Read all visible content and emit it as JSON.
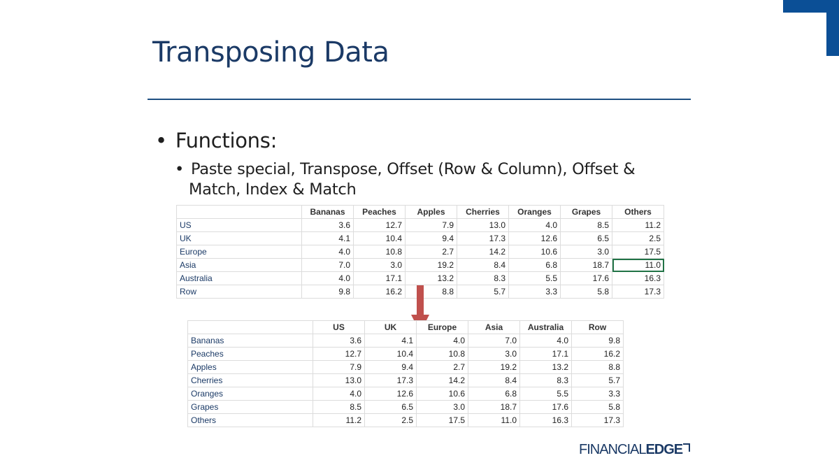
{
  "slide": {
    "title": "Transposing Data",
    "bullet1": "Functions:",
    "bullet2_line1": "Paste special, Transpose, Offset (Row & Column), Offset &",
    "bullet2_line2": "Match, Index & Match",
    "bullet_glyph": "•"
  },
  "colors": {
    "accent": "#1e4f82",
    "corner": "#0b4f96",
    "arrow": "#c0504d",
    "title": "#1b3a66"
  },
  "table1": {
    "headers": [
      "",
      "Bananas",
      "Peaches",
      "Apples",
      "Cherries",
      "Oranges",
      "Grapes",
      "Others"
    ],
    "rows": [
      [
        "US",
        "3.6",
        "12.7",
        "7.9",
        "13.0",
        "4.0",
        "8.5",
        "11.2"
      ],
      [
        "UK",
        "4.1",
        "10.4",
        "9.4",
        "17.3",
        "12.6",
        "6.5",
        "2.5"
      ],
      [
        "Europe",
        "4.0",
        "10.8",
        "2.7",
        "14.2",
        "10.6",
        "3.0",
        "17.5"
      ],
      [
        "Asia",
        "7.0",
        "3.0",
        "19.2",
        "8.4",
        "6.8",
        "18.7",
        "11.0"
      ],
      [
        "Australia",
        "4.0",
        "17.1",
        "13.2",
        "8.3",
        "5.5",
        "17.6",
        "16.3"
      ],
      [
        "Row",
        "9.8",
        "16.2",
        "8.8",
        "5.7",
        "3.3",
        "5.8",
        "17.3"
      ]
    ]
  },
  "table2": {
    "headers": [
      "",
      "US",
      "UK",
      "Europe",
      "Asia",
      "Australia",
      "Row"
    ],
    "rows": [
      [
        "Bananas",
        "3.6",
        "4.1",
        "4.0",
        "7.0",
        "4.0",
        "9.8"
      ],
      [
        "Peaches",
        "12.7",
        "10.4",
        "10.8",
        "3.0",
        "17.1",
        "16.2"
      ],
      [
        "Apples",
        "7.9",
        "9.4",
        "2.7",
        "19.2",
        "13.2",
        "8.8"
      ],
      [
        "Cherries",
        "13.0",
        "17.3",
        "14.2",
        "8.4",
        "8.3",
        "5.7"
      ],
      [
        "Oranges",
        "4.0",
        "12.6",
        "10.6",
        "6.8",
        "5.5",
        "3.3"
      ],
      [
        "Grapes",
        "8.5",
        "6.5",
        "3.0",
        "18.7",
        "17.6",
        "5.8"
      ],
      [
        "Others",
        "11.2",
        "2.5",
        "17.5",
        "11.0",
        "16.3",
        "17.3"
      ]
    ]
  },
  "logo": {
    "part1": "FINANCIAL",
    "part2": "EDGE"
  }
}
